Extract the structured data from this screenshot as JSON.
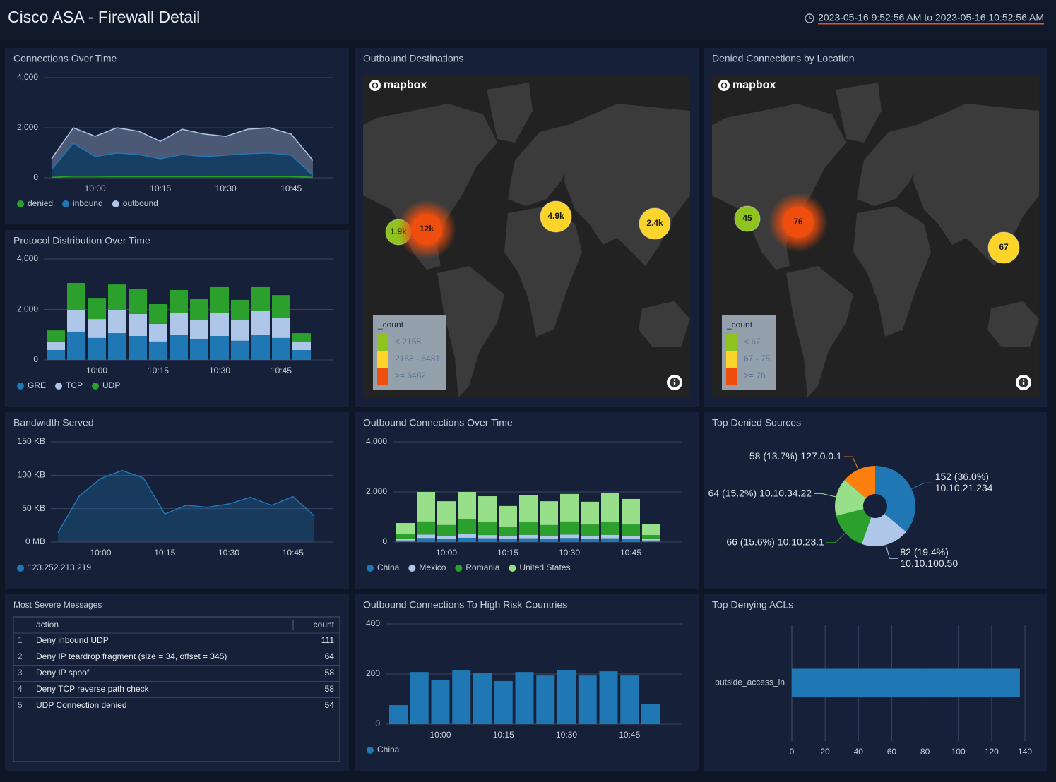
{
  "header": {
    "title": "Cisco ASA - Firewall Detail",
    "time_range": "2023-05-16 9:52:56 AM to 2023-05-16 10:52:56 AM"
  },
  "chart_data": [
    {
      "type": "area",
      "title": "Connections Over Time",
      "stacked": true,
      "categories": [
        null,
        null,
        "10:00",
        null,
        null,
        "10:15",
        null,
        null,
        "10:30",
        null,
        null,
        "10:45",
        null
      ],
      "ylim": [
        0,
        4000
      ],
      "yticks": [
        0,
        {
          "value": 2000,
          "label": "2,000"
        },
        {
          "value": 4000,
          "label": "4,000"
        }
      ],
      "grid": true,
      "series": [
        {
          "name": "denied",
          "color": "#2ca02c",
          "values": [
            20,
            60,
            60,
            50,
            50,
            50,
            50,
            50,
            50,
            50,
            50,
            50,
            20
          ]
        },
        {
          "name": "inbound",
          "color": "#1f77b4",
          "values": [
            320,
            1320,
            790,
            940,
            880,
            710,
            880,
            800,
            850,
            910,
            940,
            850,
            80
          ]
        },
        {
          "name": "outbound",
          "color": "#aec7e8",
          "values": [
            420,
            620,
            810,
            1010,
            930,
            700,
            1010,
            900,
            760,
            980,
            1010,
            850,
            600
          ]
        }
      ]
    },
    {
      "type": "bar",
      "title": "Protocol Distribution Over Time",
      "stacked": true,
      "categories": [
        null,
        null,
        "10:00",
        null,
        null,
        "10:15",
        null,
        null,
        "10:30",
        null,
        null,
        "10:45",
        null
      ],
      "ylim": [
        0,
        4000
      ],
      "yticks": [
        0,
        {
          "value": 2000,
          "label": "2,000"
        },
        {
          "value": 4000,
          "label": "4,000"
        }
      ],
      "grid": true,
      "series": [
        {
          "name": "GRE",
          "color": "#1f77b4",
          "values": [
            390,
            1120,
            870,
            1060,
            950,
            730,
            980,
            840,
            950,
            760,
            980,
            870,
            390
          ]
        },
        {
          "name": "TCP",
          "color": "#aec7e8",
          "values": [
            340,
            870,
            750,
            930,
            870,
            700,
            870,
            750,
            920,
            810,
            950,
            810,
            310
          ]
        },
        {
          "name": "UDP",
          "color": "#2ca02c",
          "values": [
            440,
            1060,
            840,
            1000,
            980,
            780,
            920,
            840,
            1040,
            810,
            980,
            890,
            360
          ]
        }
      ]
    },
    {
      "type": "area",
      "title": "Bandwidth Served",
      "stacked": false,
      "categories": [
        null,
        null,
        "10:00",
        null,
        null,
        "10:15",
        null,
        null,
        "10:30",
        null,
        null,
        "10:45",
        null
      ],
      "ylim": [
        0,
        150
      ],
      "yticks": [
        {
          "value": 0,
          "label": "0 MB"
        },
        {
          "value": 50,
          "label": "50 KB"
        },
        {
          "value": 100,
          "label": "100 KB"
        },
        {
          "value": 150,
          "label": "150 KB"
        }
      ],
      "grid": true,
      "series": [
        {
          "name": "123.252.213.219",
          "color": "#1f77b4",
          "values": [
            14,
            69,
            95,
            107,
            96,
            42,
            55,
            52,
            57,
            67,
            55,
            68,
            39
          ]
        }
      ]
    },
    {
      "type": "bar",
      "title": "Outbound Connections Over Time",
      "stacked": true,
      "categories": [
        null,
        null,
        "10:00",
        null,
        null,
        "10:15",
        null,
        null,
        "10:30",
        null,
        null,
        "10:45",
        null
      ],
      "ylim": [
        0,
        4000
      ],
      "yticks": [
        0,
        {
          "value": 2000,
          "label": "2,000"
        },
        {
          "value": 4000,
          "label": "4,000"
        }
      ],
      "grid": true,
      "series": [
        {
          "name": "China",
          "color": "#1f77b4",
          "values": [
            60,
            160,
            130,
            170,
            150,
            120,
            150,
            130,
            160,
            130,
            150,
            140,
            60
          ]
        },
        {
          "name": "Mexico",
          "color": "#aec7e8",
          "values": [
            60,
            140,
            120,
            150,
            130,
            110,
            140,
            120,
            140,
            120,
            140,
            120,
            60
          ]
        },
        {
          "name": "Romania",
          "color": "#2ca02c",
          "values": [
            190,
            520,
            430,
            580,
            510,
            390,
            500,
            430,
            520,
            450,
            500,
            440,
            160
          ]
        },
        {
          "name": "United States",
          "color": "#98df8a",
          "values": [
            450,
            1180,
            950,
            1100,
            1040,
            820,
            1070,
            950,
            1100,
            910,
            1180,
            1020,
            450
          ]
        }
      ]
    },
    {
      "type": "pie",
      "title": "Top Denied Sources",
      "donut": true,
      "categories": [
        "10.10.21.234",
        "10.10.100.50",
        "10.10.23.1",
        "10.10.34.22",
        "127.0.0.1"
      ],
      "values": [
        152,
        82,
        66,
        64,
        58
      ],
      "value_labels": [
        "152 (36.0%)",
        "82 (19.4%)",
        "66 (15.6%)",
        "64 (15.2%)",
        "58 (13.7%)"
      ],
      "colors": [
        "#1f77b4",
        "#aec7e8",
        "#2ca02c",
        "#98df8a",
        "#ff7f0e"
      ]
    },
    {
      "type": "bar",
      "title": "Outbound Connections To High Risk Countries",
      "stacked": true,
      "categories": [
        null,
        null,
        "10:00",
        null,
        null,
        "10:15",
        null,
        null,
        "10:30",
        null,
        null,
        "10:45",
        null
      ],
      "ylim": [
        0,
        400
      ],
      "yticks": [
        0,
        200,
        400
      ],
      "grid": true,
      "series": [
        {
          "name": "China",
          "color": "#1f77b4",
          "values": [
            76,
            208,
            177,
            214,
            203,
            172,
            208,
            194,
            217,
            194,
            211,
            194,
            79
          ]
        }
      ]
    },
    {
      "type": "hbar",
      "title": "Top Denying ACLs",
      "categories": [
        "outside_access_in"
      ],
      "values": [
        137
      ],
      "color": "#1f77b4",
      "xlim": [
        0,
        140
      ],
      "xticks": [
        0,
        20,
        40,
        60,
        80,
        100,
        120,
        140
      ],
      "grid": true
    }
  ],
  "maps": [
    {
      "title": "Outbound Destinations",
      "brand": "mapbox",
      "legend_title": "_count",
      "legend": [
        {
          "label": "< 2158",
          "color": "#8fc31f"
        },
        {
          "label": "2158 - 6481",
          "color": "#fdd42a"
        },
        {
          "label": ">= 6482",
          "color": "#f04e0e"
        }
      ],
      "bubbles": [
        {
          "label": "1.9k",
          "color": "#8fc31f"
        },
        {
          "label": "12k",
          "color": "#f04e0e"
        },
        {
          "label": "4.9k",
          "color": "#fdd42a"
        },
        {
          "label": "2.4k",
          "color": "#fdd42a"
        }
      ]
    },
    {
      "title": "Denied Connections by Location",
      "brand": "mapbox",
      "legend_title": "_count",
      "legend": [
        {
          "label": "< 67",
          "color": "#8fc31f"
        },
        {
          "label": "67 - 75",
          "color": "#fdd42a"
        },
        {
          "label": ">= 76",
          "color": "#f04e0e"
        }
      ],
      "bubbles": [
        {
          "label": "45",
          "color": "#8fc31f"
        },
        {
          "label": "76",
          "color": "#f04e0e"
        },
        {
          "label": "67",
          "color": "#fdd42a"
        }
      ]
    }
  ],
  "table": {
    "title": "Most Severe Messages",
    "columns": [
      "action",
      "count"
    ],
    "rows": [
      [
        1,
        "Deny inbound UDP",
        111
      ],
      [
        2,
        "Deny IP teardrop fragment (size = 34, offset = 345)",
        64
      ],
      [
        3,
        "Deny IP spoof",
        58
      ],
      [
        4,
        "Deny TCP reverse path check",
        58
      ],
      [
        5,
        "UDP Connection denied",
        54
      ]
    ]
  }
}
